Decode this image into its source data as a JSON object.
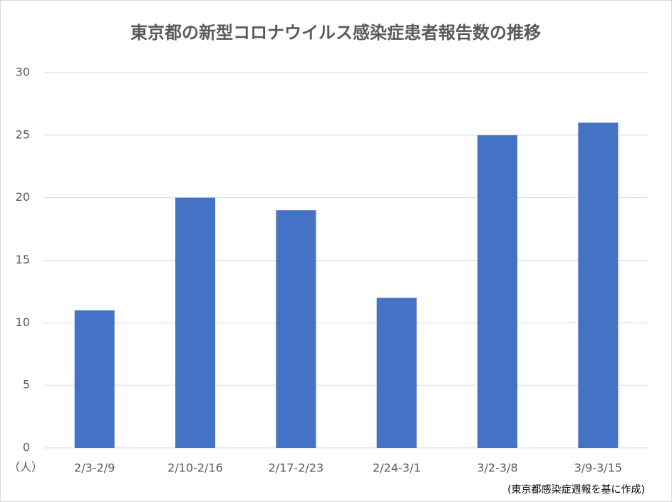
{
  "chart_data": {
    "type": "bar",
    "title": "東京都の新型コロナウイルス感染症患者報告数の推移",
    "ylabel": "（人）",
    "note": "(東京都感染症週報を基に作成)",
    "categories": [
      "2/3-2/9",
      "2/10-2/16",
      "2/17-2/23",
      "2/24-3/1",
      "3/2-3/8",
      "3/9-3/15"
    ],
    "values": [
      11,
      20,
      19,
      12,
      25,
      26
    ],
    "color": "#4472c4",
    "ylim": [
      0,
      30
    ],
    "yticks": [
      0,
      5,
      10,
      15,
      20,
      25,
      30
    ],
    "grid": true
  }
}
